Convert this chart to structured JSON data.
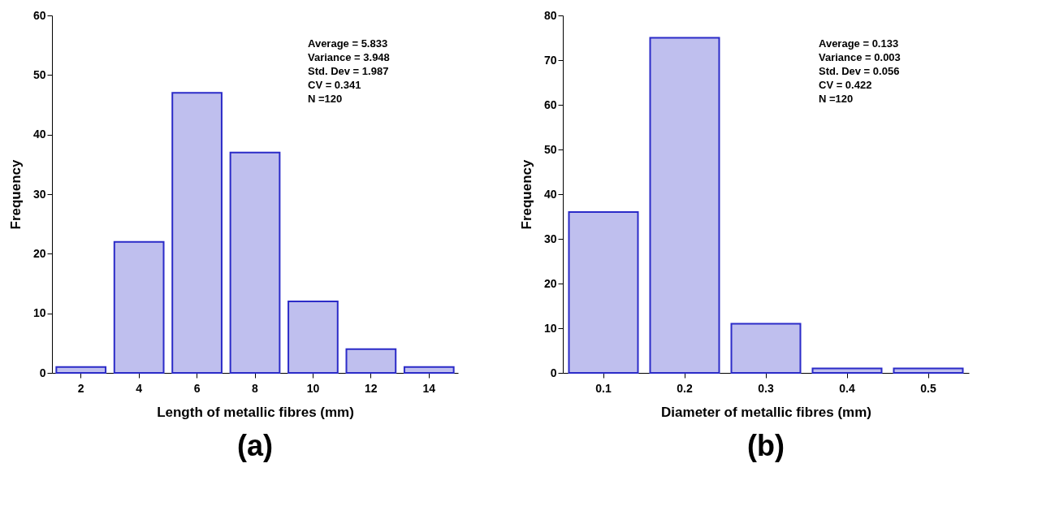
{
  "chart_data": [
    {
      "type": "bar",
      "title": "(a)",
      "xlabel": "Length of metallic fibres (mm)",
      "ylabel": "Frequency",
      "categories": [
        "2",
        "4",
        "6",
        "8",
        "10",
        "12",
        "14"
      ],
      "values": [
        1,
        22,
        47,
        37,
        12,
        4,
        1
      ],
      "color": "#2b2bc8",
      "ylim": [
        0,
        60
      ],
      "yticks": [
        0,
        10,
        20,
        30,
        40,
        50,
        60
      ],
      "grid": false,
      "annotations": [
        "Average = 5.833",
        "Variance = 3.948",
        "Std. Dev = 1.987",
        "CV = 0.341",
        "N =120"
      ]
    },
    {
      "type": "bar",
      "title": "(b)",
      "xlabel": "Diameter of metallic fibres (mm)",
      "ylabel": "Frequency",
      "categories": [
        "0.1",
        "0.2",
        "0.3",
        "0.4",
        "0.5"
      ],
      "values": [
        36,
        75,
        11,
        1,
        1
      ],
      "color": "#2b2bc8",
      "ylim": [
        0,
        80
      ],
      "yticks": [
        0,
        10,
        20,
        30,
        40,
        50,
        60,
        70,
        80
      ],
      "grid": false,
      "annotations": [
        "Average = 0.133",
        "Variance = 0.003",
        "Std. Dev = 0.056",
        "CV = 0.422",
        "N =120"
      ]
    }
  ]
}
